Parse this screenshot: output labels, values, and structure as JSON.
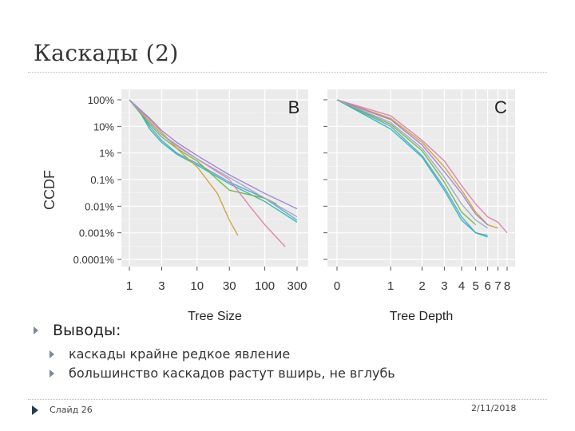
{
  "slide": {
    "title": "Каскады (2)",
    "bullet_main": "Выводы:",
    "sub_bullets": [
      "каскады крайне редкое явление",
      "большинство каскадов растут вширь, не вглубь"
    ],
    "footer_left": "Слайд 26",
    "footer_right": "2/11/2018"
  },
  "chart_data": [
    {
      "type": "line",
      "panel_label": "B",
      "xlabel": "Tree Size",
      "ylabel": "CCDF",
      "x_scale": "log",
      "y_scale": "log",
      "xticks": [
        1,
        3,
        10,
        30,
        100,
        300
      ],
      "yticks": [
        "100%",
        "10%",
        "1%",
        "0.1%",
        "0.01%",
        "0.001%",
        "0.0001%"
      ],
      "xlim": [
        1,
        300
      ],
      "ylim": [
        "0.0001%",
        "100%"
      ],
      "grid": true,
      "series": [
        {
          "color": "#4aa3df",
          "points": [
            [
              1,
              100
            ],
            [
              1.5,
              30
            ],
            [
              2,
              10
            ],
            [
              3,
              3
            ],
            [
              5,
              1
            ],
            [
              10,
              0.4
            ],
            [
              30,
              0.08
            ],
            [
              100,
              0.02
            ],
            [
              300,
              0.003
            ]
          ]
        },
        {
          "color": "#2cb5a0",
          "points": [
            [
              1,
              100
            ],
            [
              1.5,
              28
            ],
            [
              2,
              8
            ],
            [
              3,
              2.5
            ],
            [
              5,
              0.9
            ],
            [
              10,
              0.35
            ],
            [
              30,
              0.07
            ],
            [
              100,
              0.015
            ],
            [
              300,
              0.0025
            ]
          ]
        },
        {
          "color": "#6db33f",
          "points": [
            [
              1,
              100
            ],
            [
              2,
              12
            ],
            [
              3,
              4
            ],
            [
              5,
              1.5
            ],
            [
              10,
              0.5
            ],
            [
              20,
              0.1
            ],
            [
              30,
              0.04
            ],
            [
              100,
              0.02
            ],
            [
              150,
              0.012
            ]
          ]
        },
        {
          "color": "#c7a233",
          "points": [
            [
              1,
              100
            ],
            [
              2,
              18
            ],
            [
              3,
              6
            ],
            [
              5,
              1.5
            ],
            [
              10,
              0.3
            ],
            [
              20,
              0.03
            ],
            [
              30,
              0.003
            ],
            [
              40,
              0.0008
            ]
          ]
        },
        {
          "color": "#e07aa8",
          "points": [
            [
              1,
              100
            ],
            [
              2,
              15
            ],
            [
              3,
              5
            ],
            [
              5,
              2
            ],
            [
              10,
              0.6
            ],
            [
              30,
              0.1
            ],
            [
              60,
              0.01
            ],
            [
              100,
              0.002
            ],
            [
              200,
              0.0003
            ]
          ]
        },
        {
          "color": "#a07ad6",
          "points": [
            [
              1,
              100
            ],
            [
              2,
              20
            ],
            [
              3,
              7
            ],
            [
              5,
              2.5
            ],
            [
              10,
              0.8
            ],
            [
              30,
              0.15
            ],
            [
              100,
              0.03
            ],
            [
              300,
              0.008
            ]
          ]
        },
        {
          "color": "#9aa7b5",
          "points": [
            [
              1,
              100
            ],
            [
              2,
              14
            ],
            [
              3,
              5
            ],
            [
              5,
              1.8
            ],
            [
              10,
              0.6
            ],
            [
              30,
              0.12
            ],
            [
              100,
              0.02
            ],
            [
              300,
              0.004
            ]
          ]
        }
      ]
    },
    {
      "type": "line",
      "panel_label": "C",
      "xlabel": "Tree Depth",
      "ylabel": "",
      "x_scale": "log1p",
      "y_scale": "log",
      "xticks": [
        0,
        1,
        2,
        3,
        4,
        5,
        6,
        7,
        8
      ],
      "yticks": [],
      "xlim": [
        0,
        8
      ],
      "ylim": [
        "0.0001%",
        "100%"
      ],
      "grid": true,
      "series": [
        {
          "color": "#4aa3df",
          "points": [
            [
              0,
              100
            ],
            [
              1,
              10
            ],
            [
              2,
              0.8
            ],
            [
              3,
              0.05
            ],
            [
              4,
              0.004
            ],
            [
              5,
              0.001
            ],
            [
              6,
              0.0008
            ]
          ]
        },
        {
          "color": "#2cb5a0",
          "points": [
            [
              0,
              100
            ],
            [
              1,
              8
            ],
            [
              2,
              0.7
            ],
            [
              3,
              0.04
            ],
            [
              4,
              0.003
            ],
            [
              5,
              0.001
            ],
            [
              6,
              0.0007
            ]
          ]
        },
        {
          "color": "#6db33f",
          "points": [
            [
              0,
              100
            ],
            [
              1,
              12
            ],
            [
              2,
              1.2
            ],
            [
              3,
              0.08
            ],
            [
              4,
              0.006
            ],
            [
              5,
              0.002
            ]
          ]
        },
        {
          "color": "#c7a233",
          "points": [
            [
              0,
              100
            ],
            [
              1,
              20
            ],
            [
              2,
              2.5
            ],
            [
              3,
              0.3
            ],
            [
              4,
              0.04
            ],
            [
              5,
              0.006
            ],
            [
              6,
              0.002
            ],
            [
              7,
              0.0015
            ]
          ]
        },
        {
          "color": "#e07aa8",
          "points": [
            [
              0,
              100
            ],
            [
              1,
              25
            ],
            [
              2,
              3
            ],
            [
              3,
              0.5
            ],
            [
              4,
              0.06
            ],
            [
              5,
              0.012
            ],
            [
              6,
              0.004
            ],
            [
              7,
              0.0025
            ],
            [
              8,
              0.001
            ]
          ]
        },
        {
          "color": "#a07ad6",
          "points": [
            [
              0,
              100
            ],
            [
              1,
              18
            ],
            [
              2,
              2
            ],
            [
              3,
              0.2
            ],
            [
              4,
              0.03
            ],
            [
              5,
              0.005
            ],
            [
              6,
              0.002
            ]
          ]
        },
        {
          "color": "#9aa7b5",
          "points": [
            [
              0,
              100
            ],
            [
              1,
              14
            ],
            [
              2,
              1.5
            ],
            [
              3,
              0.12
            ],
            [
              4,
              0.012
            ],
            [
              5,
              0.003
            ],
            [
              6,
              0.0015
            ]
          ]
        }
      ]
    }
  ]
}
